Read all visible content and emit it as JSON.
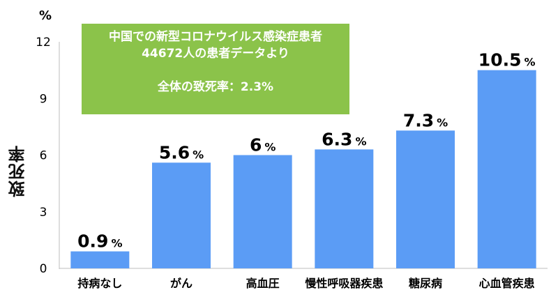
{
  "chart_data": {
    "type": "bar",
    "categories": [
      "持病なし",
      "がん",
      "高血圧",
      "慢性呼吸器疾患",
      "糖尿病",
      "心血管疾患"
    ],
    "values": [
      0.9,
      5.6,
      6,
      6.3,
      7.3,
      10.5
    ],
    "value_labels": [
      "0.9",
      "5.6",
      "6",
      "6.3",
      "7.3",
      "10.5"
    ],
    "value_unit": "%",
    "ylabel": "致死率",
    "unit_label": "%",
    "ylim": [
      0,
      12
    ],
    "yticks": [
      "0",
      "3",
      "6",
      "9",
      "12"
    ],
    "grid": false,
    "bar_color": "#5b9cf5"
  },
  "info_box": {
    "line1": "中国での新型コロナウイルス感染症患者",
    "line2": "44672人の患者データより",
    "line3": "全体の致死率：2.3%",
    "color": "#8bc34a"
  }
}
